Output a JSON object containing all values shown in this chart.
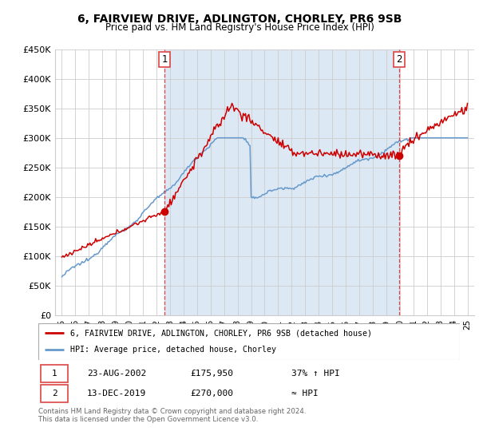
{
  "title": "6, FAIRVIEW DRIVE, ADLINGTON, CHORLEY, PR6 9SB",
  "subtitle": "Price paid vs. HM Land Registry's House Price Index (HPI)",
  "legend_line1": "6, FAIRVIEW DRIVE, ADLINGTON, CHORLEY, PR6 9SB (detached house)",
  "legend_line2": "HPI: Average price, detached house, Chorley",
  "footnote": "Contains HM Land Registry data © Crown copyright and database right 2024.\nThis data is licensed under the Open Government Licence v3.0.",
  "sale1_date": "23-AUG-2002",
  "sale1_price": "£175,950",
  "sale1_hpi": "37% ↑ HPI",
  "sale2_date": "13-DEC-2019",
  "sale2_price": "£270,000",
  "sale2_hpi": "≈ HPI",
  "red_color": "#cc0000",
  "blue_color": "#6699cc",
  "dashed_red": "#dd4444",
  "shade_color": "#dde8f5",
  "ylim": [
    0,
    450000
  ],
  "yticks": [
    0,
    50000,
    100000,
    150000,
    200000,
    250000,
    300000,
    350000,
    400000,
    450000
  ],
  "ytick_labels": [
    "£0",
    "£50K",
    "£100K",
    "£150K",
    "£200K",
    "£250K",
    "£300K",
    "£350K",
    "£400K",
    "£450K"
  ],
  "xtick_labels": [
    "95",
    "96",
    "97",
    "98",
    "99",
    "00",
    "01",
    "02",
    "03",
    "04",
    "05",
    "06",
    "07",
    "08",
    "09",
    "10",
    "11",
    "12",
    "13",
    "14",
    "15",
    "16",
    "17",
    "18",
    "19",
    "20",
    "21",
    "22",
    "23",
    "24",
    "25"
  ],
  "start_year": 1995,
  "end_year": 2025,
  "sale1_t": 2002.6,
  "sale1_price_val": 175950,
  "sale2_t": 2019.95,
  "sale2_price_val": 270000
}
